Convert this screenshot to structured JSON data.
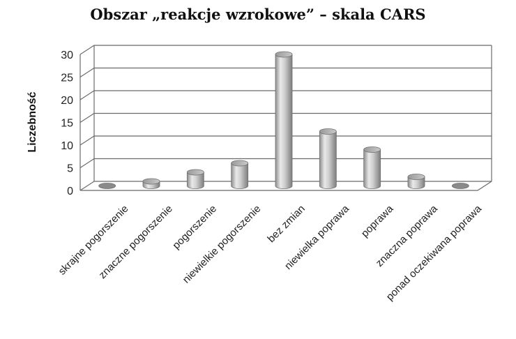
{
  "chart_data": {
    "type": "bar",
    "title": "Obszar „reakcje wzrokowe” – skala CARS",
    "xlabel": "",
    "ylabel": "Liczebność",
    "ylim": [
      0,
      30
    ],
    "yticks": [
      0,
      5,
      10,
      15,
      20,
      25,
      30
    ],
    "grid": true,
    "legend": "none",
    "categories": [
      "skrajne pogorszenie",
      "znaczne pogorszenie",
      "pogorszenie",
      "niewielkie pogorszenie",
      "bez zmian",
      "niewielka poprawa",
      "poprawa",
      "znaczna poprawa",
      "ponad oczekiwana poprawa"
    ],
    "values": [
      0,
      1,
      3,
      5,
      29,
      12,
      8,
      2,
      0
    ],
    "bar_color": "#b3b3b3"
  }
}
